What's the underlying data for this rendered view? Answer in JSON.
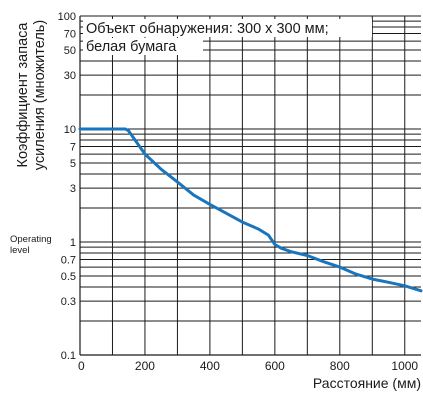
{
  "chart_data": {
    "type": "line",
    "annotation": [
      "Объект обнаружения: 300 x 300 мм;",
      "белая бумага"
    ],
    "xlabel": "Расстояние (мм)",
    "ylabel_lines": [
      "Коэффициент запаса",
      "усиления (множитель)"
    ],
    "y_scale": "log",
    "xlim": [
      0,
      1050
    ],
    "ylim": [
      0.1,
      100
    ],
    "x_ticks": [
      {
        "value": 0,
        "label": "0"
      },
      {
        "value": 200,
        "label": "200"
      },
      {
        "value": 400,
        "label": "400"
      },
      {
        "value": 600,
        "label": "600"
      },
      {
        "value": 800,
        "label": "800"
      },
      {
        "value": 1000,
        "label": "1000"
      }
    ],
    "y_ticks": [
      {
        "value": 100,
        "label": "100"
      },
      {
        "value": 70,
        "label": "70"
      },
      {
        "value": 50,
        "label": "50"
      },
      {
        "value": 30,
        "label": "30"
      },
      {
        "value": 10,
        "label": "10"
      },
      {
        "value": 7,
        "label": "7"
      },
      {
        "value": 5,
        "label": "5"
      },
      {
        "value": 3,
        "label": "3"
      },
      {
        "value": 1,
        "label": "1"
      },
      {
        "value": 0.7,
        "label": "0.7"
      },
      {
        "value": 0.5,
        "label": "0.5"
      },
      {
        "value": 0.3,
        "label": "0.3"
      },
      {
        "value": 0.1,
        "label": "0.1"
      }
    ],
    "y_minor_grid": [
      20,
      40,
      60,
      80,
      90,
      2,
      4,
      6,
      8,
      9,
      0.2,
      0.4,
      0.6,
      0.8,
      0.9
    ],
    "reference_label": {
      "value": 1,
      "lines": [
        "Operating",
        "level"
      ]
    },
    "grid": true,
    "line_color": "#1a75bc",
    "series": [
      {
        "x": [
          0,
          30,
          60,
          100,
          140,
          150,
          175,
          200,
          250,
          300,
          350,
          400,
          450,
          500,
          550,
          580,
          600,
          620,
          650,
          700,
          750,
          800,
          850,
          900,
          950,
          1000,
          1050
        ],
        "y": [
          10,
          10,
          10,
          10,
          10,
          9.6,
          7.6,
          6.0,
          4.4,
          3.4,
          2.6,
          2.15,
          1.8,
          1.5,
          1.3,
          1.15,
          0.95,
          0.88,
          0.82,
          0.76,
          0.67,
          0.6,
          0.52,
          0.47,
          0.44,
          0.41,
          0.37
        ]
      }
    ]
  }
}
